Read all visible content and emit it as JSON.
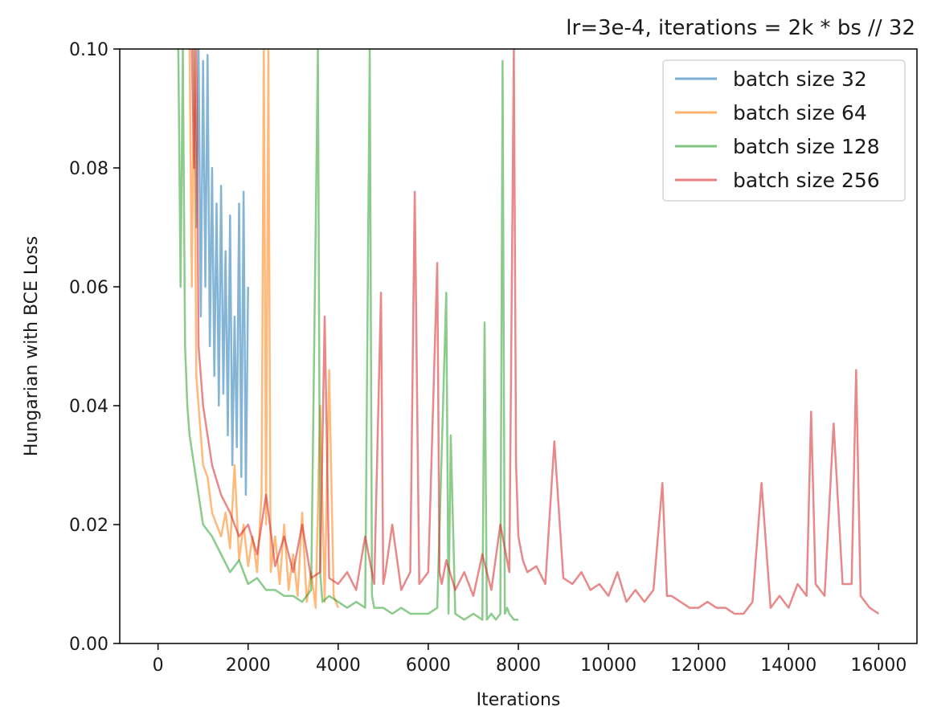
{
  "chart_data": {
    "type": "line",
    "title": "lr=3e-4, iterations = 2k * bs // 32",
    "xlabel": "Iterations",
    "ylabel": "Hungarian with BCE Loss",
    "xlim": [
      -850,
      16850
    ],
    "ylim": [
      0.0,
      0.1
    ],
    "grid": false,
    "legend_position": "top-right",
    "x_ticks": [
      0,
      2000,
      4000,
      6000,
      8000,
      10000,
      12000,
      14000,
      16000
    ],
    "x_tick_labels": [
      "0",
      "2000",
      "4000",
      "6000",
      "8000",
      "10000",
      "12000",
      "14000",
      "16000"
    ],
    "y_ticks": [
      0.0,
      0.02,
      0.04,
      0.06,
      0.08,
      0.1
    ],
    "y_tick_labels": [
      "0.00",
      "0.02",
      "0.04",
      "0.06",
      "0.08",
      "0.10"
    ],
    "series_opacity": 0.55,
    "series": [
      {
        "name": "batch size 32",
        "color": "#1f77b4",
        "x": [
          800,
          850,
          900,
          950,
          1000,
          1050,
          1100,
          1150,
          1200,
          1250,
          1300,
          1350,
          1400,
          1450,
          1500,
          1550,
          1600,
          1650,
          1700,
          1750,
          1800,
          1850,
          1900,
          1950,
          2000
        ],
        "y": [
          0.1,
          0.07,
          0.1,
          0.055,
          0.098,
          0.06,
          0.099,
          0.05,
          0.08,
          0.045,
          0.074,
          0.04,
          0.077,
          0.042,
          0.066,
          0.035,
          0.072,
          0.03,
          0.055,
          0.033,
          0.074,
          0.028,
          0.076,
          0.025,
          0.06
        ]
      },
      {
        "name": "batch size 64",
        "color": "#ff7f0e",
        "x": [
          700,
          750,
          800,
          850,
          900,
          1000,
          1100,
          1200,
          1300,
          1400,
          1500,
          1600,
          1700,
          1800,
          1900,
          2000,
          2100,
          2200,
          2300,
          2350,
          2400,
          2450,
          2500,
          2600,
          2700,
          2800,
          2900,
          3000,
          3100,
          3200,
          3300,
          3400,
          3500,
          3600,
          3700,
          3800,
          3900,
          4000
        ],
        "y": [
          0.1,
          0.06,
          0.1,
          0.045,
          0.04,
          0.03,
          0.028,
          0.022,
          0.02,
          0.018,
          0.022,
          0.016,
          0.03,
          0.014,
          0.02,
          0.013,
          0.018,
          0.012,
          0.025,
          0.1,
          0.02,
          0.1,
          0.012,
          0.018,
          0.01,
          0.02,
          0.009,
          0.015,
          0.008,
          0.022,
          0.007,
          0.012,
          0.006,
          0.04,
          0.007,
          0.046,
          0.008,
          0.006
        ]
      },
      {
        "name": "batch size 128",
        "color": "#2ca02c",
        "x": [
          450,
          500,
          550,
          600,
          650,
          700,
          800,
          900,
          1000,
          1200,
          1400,
          1600,
          1800,
          2000,
          2200,
          2400,
          2600,
          2800,
          3000,
          3200,
          3400,
          3550,
          3600,
          3650,
          3800,
          4000,
          4200,
          4400,
          4600,
          4700,
          4750,
          4800,
          5000,
          5200,
          5400,
          5600,
          5800,
          6000,
          6200,
          6400,
          6450,
          6500,
          6600,
          6800,
          7000,
          7200,
          7250,
          7300,
          7400,
          7500,
          7600,
          7650,
          7700,
          7750,
          7800,
          7900,
          8000
        ],
        "y": [
          0.1,
          0.06,
          0.1,
          0.05,
          0.04,
          0.035,
          0.03,
          0.025,
          0.02,
          0.018,
          0.015,
          0.012,
          0.014,
          0.01,
          0.011,
          0.009,
          0.009,
          0.008,
          0.008,
          0.007,
          0.009,
          0.1,
          0.012,
          0.007,
          0.008,
          0.007,
          0.006,
          0.007,
          0.006,
          0.1,
          0.008,
          0.006,
          0.006,
          0.005,
          0.006,
          0.005,
          0.005,
          0.005,
          0.006,
          0.059,
          0.005,
          0.035,
          0.005,
          0.004,
          0.005,
          0.004,
          0.054,
          0.004,
          0.005,
          0.004,
          0.005,
          0.098,
          0.005,
          0.006,
          0.005,
          0.004,
          0.004
        ]
      },
      {
        "name": "batch size 256",
        "color": "#d62728",
        "x": [
          750,
          800,
          850,
          900,
          1000,
          1200,
          1400,
          1600,
          1800,
          2000,
          2200,
          2400,
          2600,
          2800,
          3000,
          3200,
          3400,
          3600,
          3700,
          3800,
          4000,
          4200,
          4400,
          4600,
          4800,
          4950,
          5000,
          5050,
          5200,
          5400,
          5600,
          5700,
          5800,
          6000,
          6200,
          6250,
          6300,
          6400,
          6600,
          6800,
          7000,
          7200,
          7400,
          7600,
          7800,
          7900,
          7950,
          8000,
          8100,
          8200,
          8400,
          8600,
          8800,
          9000,
          9200,
          9400,
          9600,
          9800,
          10000,
          10200,
          10400,
          10600,
          10800,
          11000,
          11200,
          11300,
          11400,
          11600,
          11800,
          12000,
          12200,
          12400,
          12600,
          12800,
          13000,
          13200,
          13400,
          13600,
          13800,
          14000,
          14200,
          14400,
          14500,
          14600,
          14800,
          15000,
          15200,
          15400,
          15500,
          15600,
          15800,
          16000
        ],
        "y": [
          0.1,
          0.08,
          0.1,
          0.05,
          0.04,
          0.03,
          0.025,
          0.022,
          0.018,
          0.02,
          0.015,
          0.025,
          0.013,
          0.018,
          0.012,
          0.02,
          0.011,
          0.012,
          0.055,
          0.011,
          0.01,
          0.012,
          0.009,
          0.018,
          0.01,
          0.059,
          0.01,
          0.012,
          0.02,
          0.009,
          0.012,
          0.076,
          0.01,
          0.012,
          0.064,
          0.012,
          0.01,
          0.014,
          0.009,
          0.012,
          0.008,
          0.015,
          0.009,
          0.02,
          0.012,
          0.1,
          0.03,
          0.018,
          0.014,
          0.012,
          0.013,
          0.01,
          0.034,
          0.011,
          0.01,
          0.012,
          0.009,
          0.01,
          0.008,
          0.012,
          0.007,
          0.009,
          0.007,
          0.009,
          0.027,
          0.008,
          0.008,
          0.007,
          0.006,
          0.006,
          0.007,
          0.006,
          0.006,
          0.005,
          0.005,
          0.007,
          0.027,
          0.006,
          0.008,
          0.006,
          0.01,
          0.008,
          0.039,
          0.01,
          0.008,
          0.037,
          0.01,
          0.01,
          0.046,
          0.008,
          0.006,
          0.005
        ]
      }
    ]
  }
}
